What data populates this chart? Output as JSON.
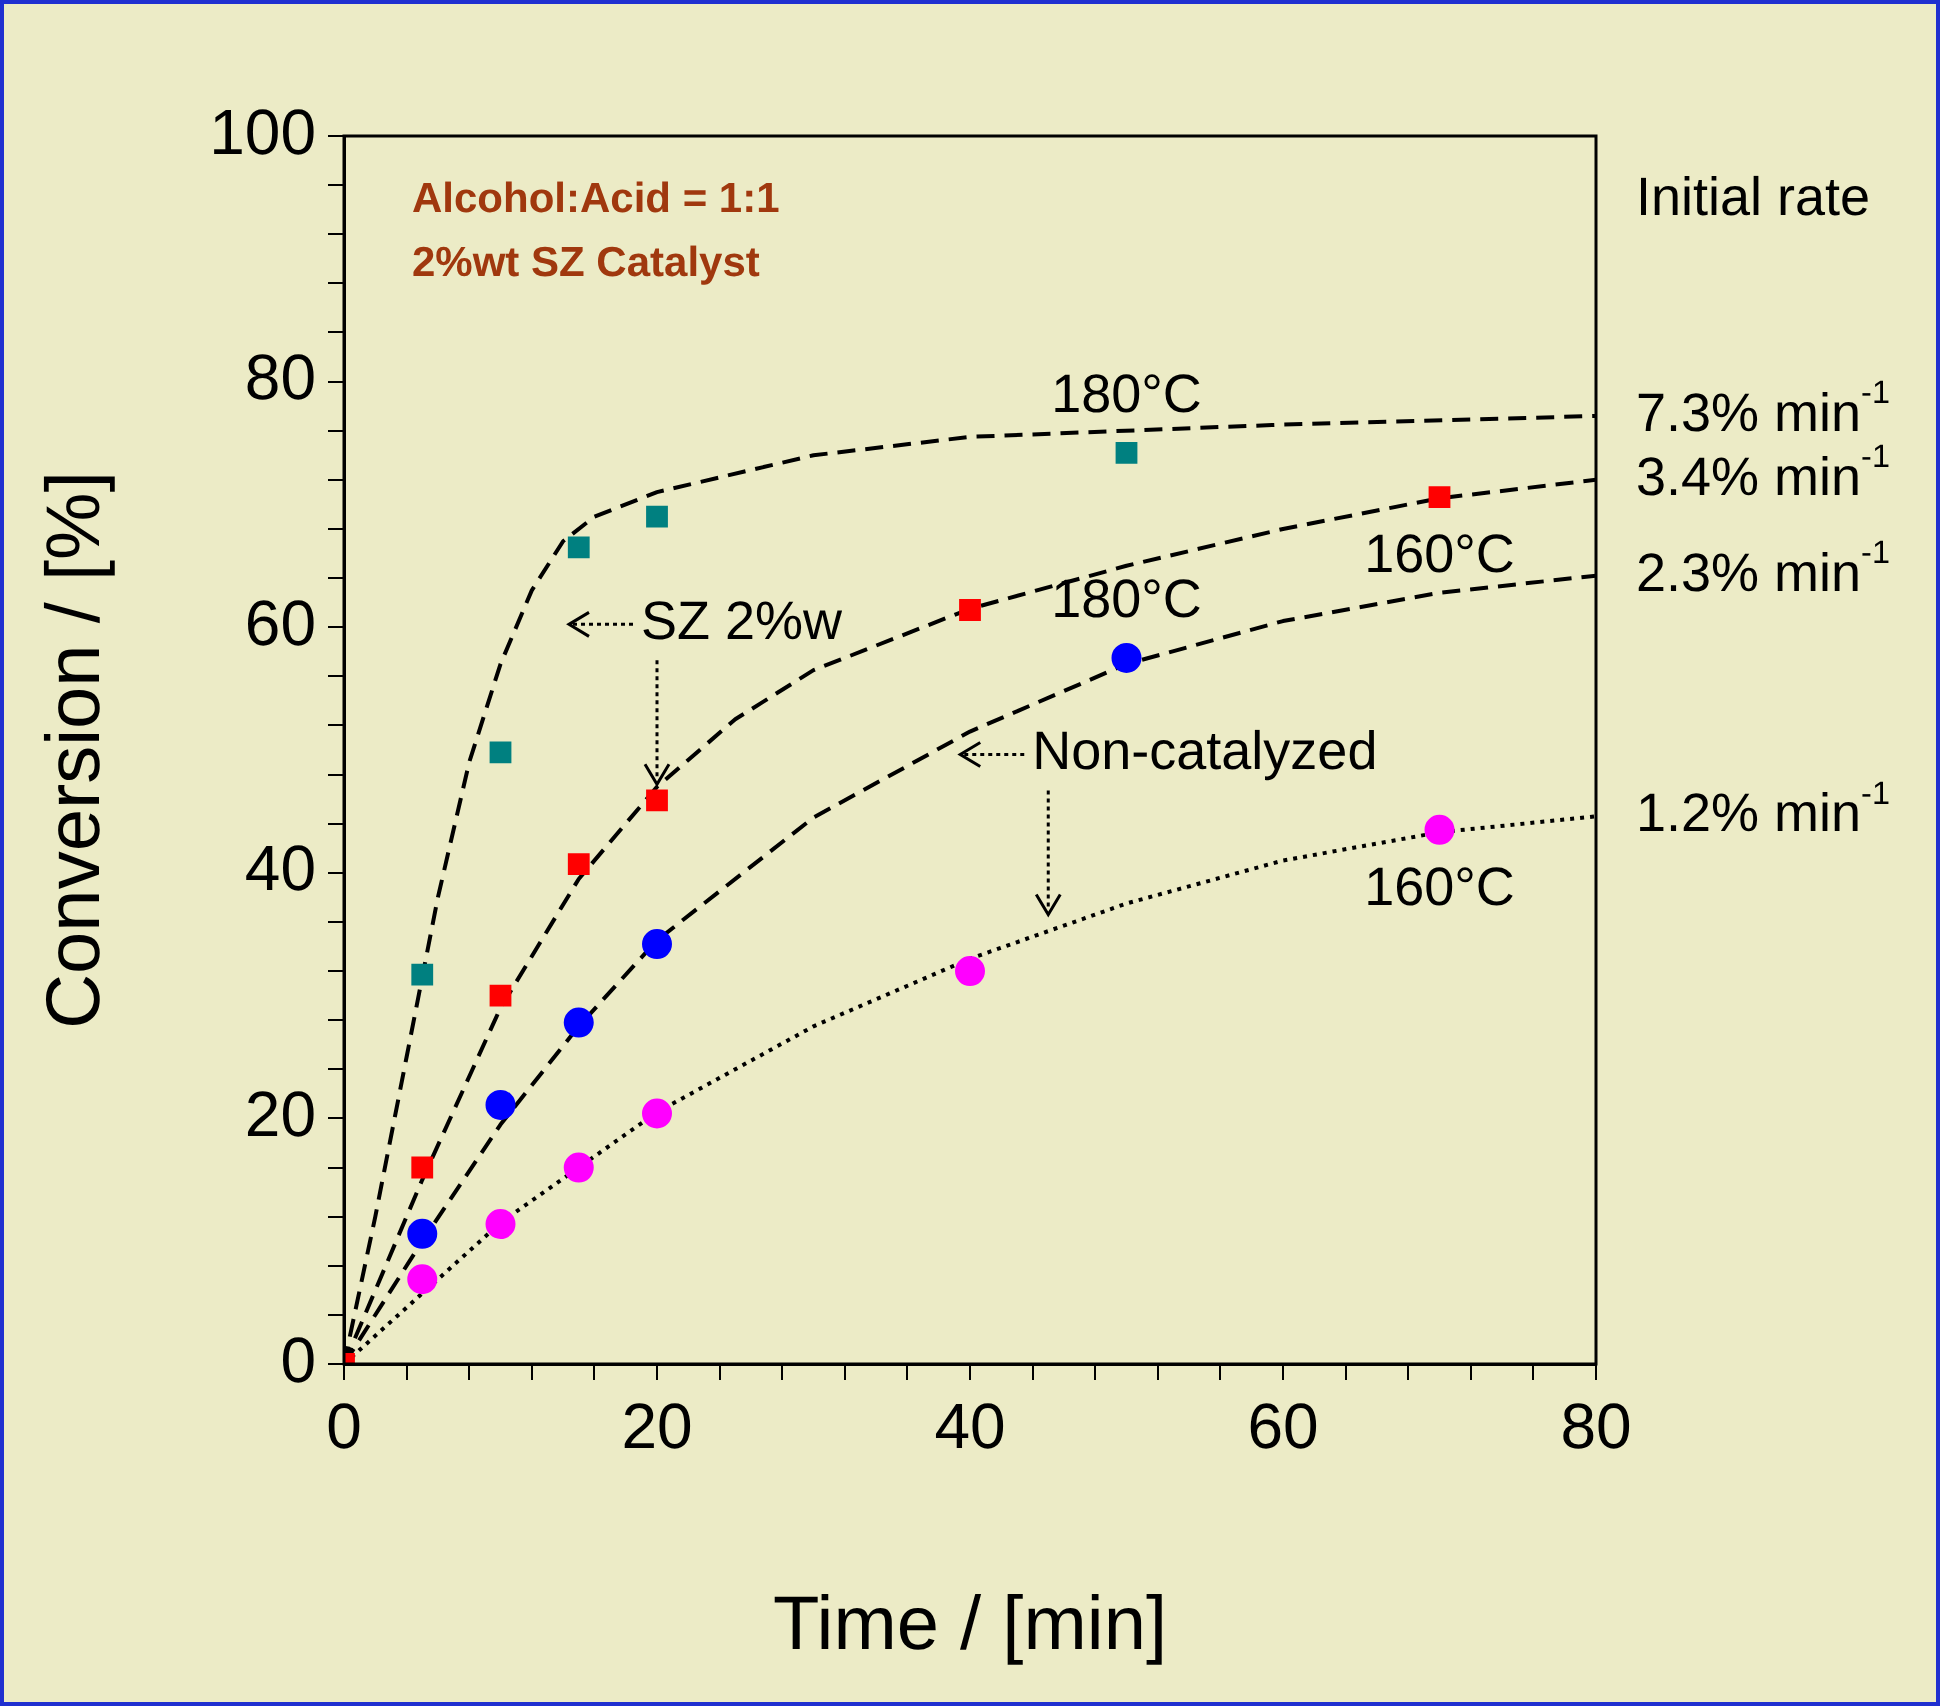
{
  "chart_data": {
    "type": "scatter",
    "xlabel": "Time / [min]",
    "ylabel": "Conversion / [%]",
    "xlim": [
      0,
      80
    ],
    "ylim": [
      0,
      100
    ],
    "xticks": [
      0,
      {
        "value": 4,
        "label": null
      },
      {
        "value": 8,
        "label": null
      },
      {
        "value": 12,
        "label": null
      },
      {
        "value": 16,
        "label": null
      },
      20,
      {
        "value": 24,
        "label": null
      },
      {
        "value": 28,
        "label": null
      },
      {
        "value": 32,
        "label": null
      },
      {
        "value": 36,
        "label": null
      },
      40,
      {
        "value": 44,
        "label": null
      },
      {
        "value": 48,
        "label": null
      },
      {
        "value": 52,
        "label": null
      },
      {
        "value": 56,
        "label": null
      },
      60,
      {
        "value": 64,
        "label": null
      },
      {
        "value": 68,
        "label": null
      },
      {
        "value": 72,
        "label": null
      },
      {
        "value": 76,
        "label": null
      },
      80
    ],
    "yticks": [
      0,
      {
        "value": 4,
        "label": null
      },
      {
        "value": 8,
        "label": null
      },
      {
        "value": 12,
        "label": null
      },
      {
        "value": 16,
        "label": null
      },
      20,
      {
        "value": 24,
        "label": null
      },
      {
        "value": 28,
        "label": null
      },
      {
        "value": 32,
        "label": null
      },
      {
        "value": 36,
        "label": null
      },
      40,
      {
        "value": 44,
        "label": null
      },
      {
        "value": 48,
        "label": null
      },
      {
        "value": 52,
        "label": null
      },
      {
        "value": 56,
        "label": null
      },
      60,
      {
        "value": 64,
        "label": null
      },
      {
        "value": 68,
        "label": null
      },
      {
        "value": 72,
        "label": null
      },
      {
        "value": 76,
        "label": null
      },
      80,
      {
        "value": 84,
        "label": null
      },
      {
        "value": 88,
        "label": null
      },
      {
        "value": 92,
        "label": null
      },
      {
        "value": 96,
        "label": null
      },
      100
    ],
    "grid": false,
    "legend": false,
    "series": [
      {
        "type": "line",
        "color": "#000000",
        "marker": "none",
        "line_style": "dashed",
        "x": [
          0,
          2,
          4,
          6,
          8,
          10,
          12,
          14,
          16,
          20,
          30,
          40,
          60,
          80
        ],
        "values": [
          0,
          12,
          25,
          38,
          49,
          57,
          63,
          67,
          69,
          71,
          74,
          75.5,
          76.5,
          77.2
        ]
      },
      {
        "type": "line",
        "color": "#000000",
        "marker": "none",
        "line_style": "dashed",
        "x": [
          0,
          5,
          10,
          15,
          20,
          25,
          30,
          40,
          50,
          60,
          70,
          80
        ],
        "values": [
          0,
          15,
          29,
          39.5,
          47,
          52.5,
          56.5,
          61.5,
          65,
          68,
          70.5,
          72
        ]
      },
      {
        "type": "line",
        "color": "#000000",
        "marker": "none",
        "line_style": "dashed",
        "x": [
          0,
          5,
          10,
          15,
          20,
          30,
          40,
          50,
          60,
          70,
          80
        ],
        "values": [
          0,
          10,
          19.5,
          27.5,
          34.5,
          44.5,
          51.5,
          57,
          60.5,
          62.8,
          64.2
        ]
      },
      {
        "type": "line",
        "color": "#000000",
        "marker": "none",
        "line_style": "dotted",
        "x": [
          0,
          10,
          20,
          30,
          40,
          50,
          60,
          70,
          80
        ],
        "values": [
          0,
          11.5,
          20.5,
          27.5,
          33,
          37.5,
          41,
          43.3,
          44.6
        ]
      },
      {
        "type": "scatter",
        "name": "180°C",
        "color": "#008080",
        "marker": "square",
        "x": [
          5,
          10,
          15,
          20,
          50
        ],
        "values": [
          31.7,
          49.8,
          66.5,
          69,
          74.2
        ]
      },
      {
        "type": "scatter",
        "name": "160°C",
        "color": "#ff0000",
        "marker": "square",
        "x": [
          0,
          5,
          10,
          15,
          20,
          40,
          70
        ],
        "values": [
          0,
          16,
          30,
          40.7,
          45.9,
          61.4,
          70.6
        ]
      },
      {
        "type": "scatter",
        "name": "180°C",
        "color": "#0000ff",
        "marker": "circle",
        "x": [
          5,
          10,
          15,
          20,
          50
        ],
        "values": [
          10.6,
          21.1,
          27.8,
          34.2,
          57.5
        ]
      },
      {
        "type": "scatter",
        "name": "160°C",
        "color": "#ff00ff",
        "marker": "circle",
        "x": [
          5,
          10,
          15,
          20,
          40,
          70
        ],
        "values": [
          6.9,
          11.4,
          16,
          20.4,
          32,
          43.5
        ]
      }
    ],
    "annotations": [
      "Alcohol:Acid = 1:1",
      "2%wt SZ Catalyst",
      "Initial rate",
      {
        "text": "SZ 2%w",
        "x": 20,
        "y": 45.9
      },
      {
        "text": "Non-catalyzed",
        "x": 45,
        "y": 35.3
      },
      {
        "text": "7.3% min$^{-1}$",
        "x": 80,
        "y": 77.2
      },
      {
        "text": "3.4% min$^{-1}$",
        "x": 80,
        "y": 72
      },
      {
        "text": "2.3% min$^{-1}$",
        "x": 80,
        "y": 64.2
      },
      {
        "text": "1.2% min$^{-1}$",
        "x": 80,
        "y": 44.6
      }
    ]
  }
}
